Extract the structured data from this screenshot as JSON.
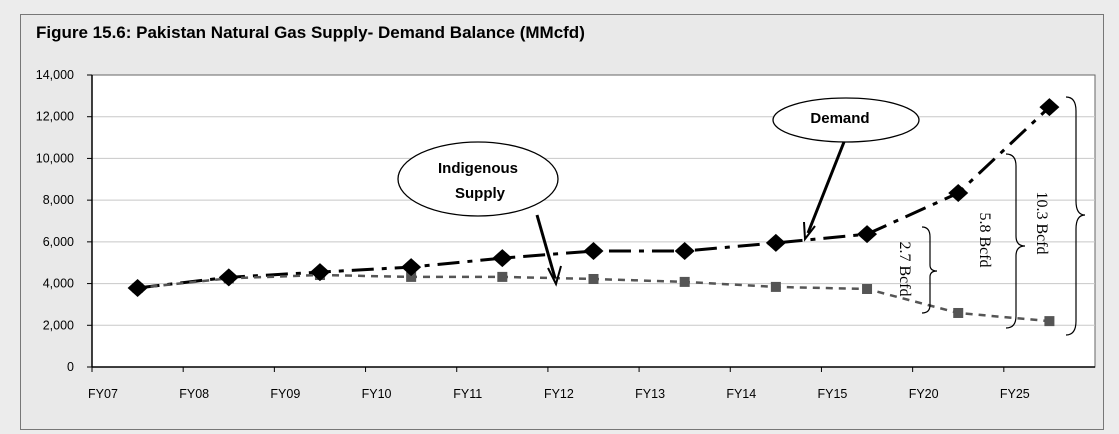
{
  "chart_data": {
    "type": "line",
    "title": "Figure 15.6: Pakistan Natural Gas Supply- Demand Balance (MMcfd)",
    "xlabel": "",
    "ylabel": "",
    "categories": [
      "FY07",
      "FY08",
      "FY09",
      "FY10",
      "FY11",
      "FY12",
      "FY13",
      "FY14",
      "FY15",
      "FY20",
      "FY25"
    ],
    "ylim": [
      0,
      14000
    ],
    "yticks": [
      0,
      2000,
      4000,
      6000,
      8000,
      10000,
      12000,
      14000
    ],
    "ytick_labels": [
      "0",
      "2,000",
      "4,000",
      "6,000",
      "8,000",
      "10,000",
      "12,000",
      "14,000"
    ],
    "grid": "horizontal",
    "series": [
      {
        "name": "Demand",
        "color": "#000000",
        "marker": "diamond",
        "line": "dash-dot",
        "values": [
          3790,
          4300,
          4550,
          4790,
          5220,
          5560,
          5560,
          5950,
          6370,
          8340,
          12460
        ]
      },
      {
        "name": "Indigenous Supply",
        "color": "#555555",
        "marker": "square",
        "line": "dashed",
        "values": [
          3790,
          4250,
          4410,
          4320,
          4320,
          4220,
          4080,
          3840,
          3740,
          2590,
          2200
        ]
      }
    ],
    "annotations": {
      "supply_callout": [
        "Indigenous",
        "Supply"
      ],
      "demand_callout": "Demand",
      "gaps": [
        "2.7 Bcfd",
        "5.8 Bcfd",
        "10.3 Bcfd"
      ]
    }
  }
}
